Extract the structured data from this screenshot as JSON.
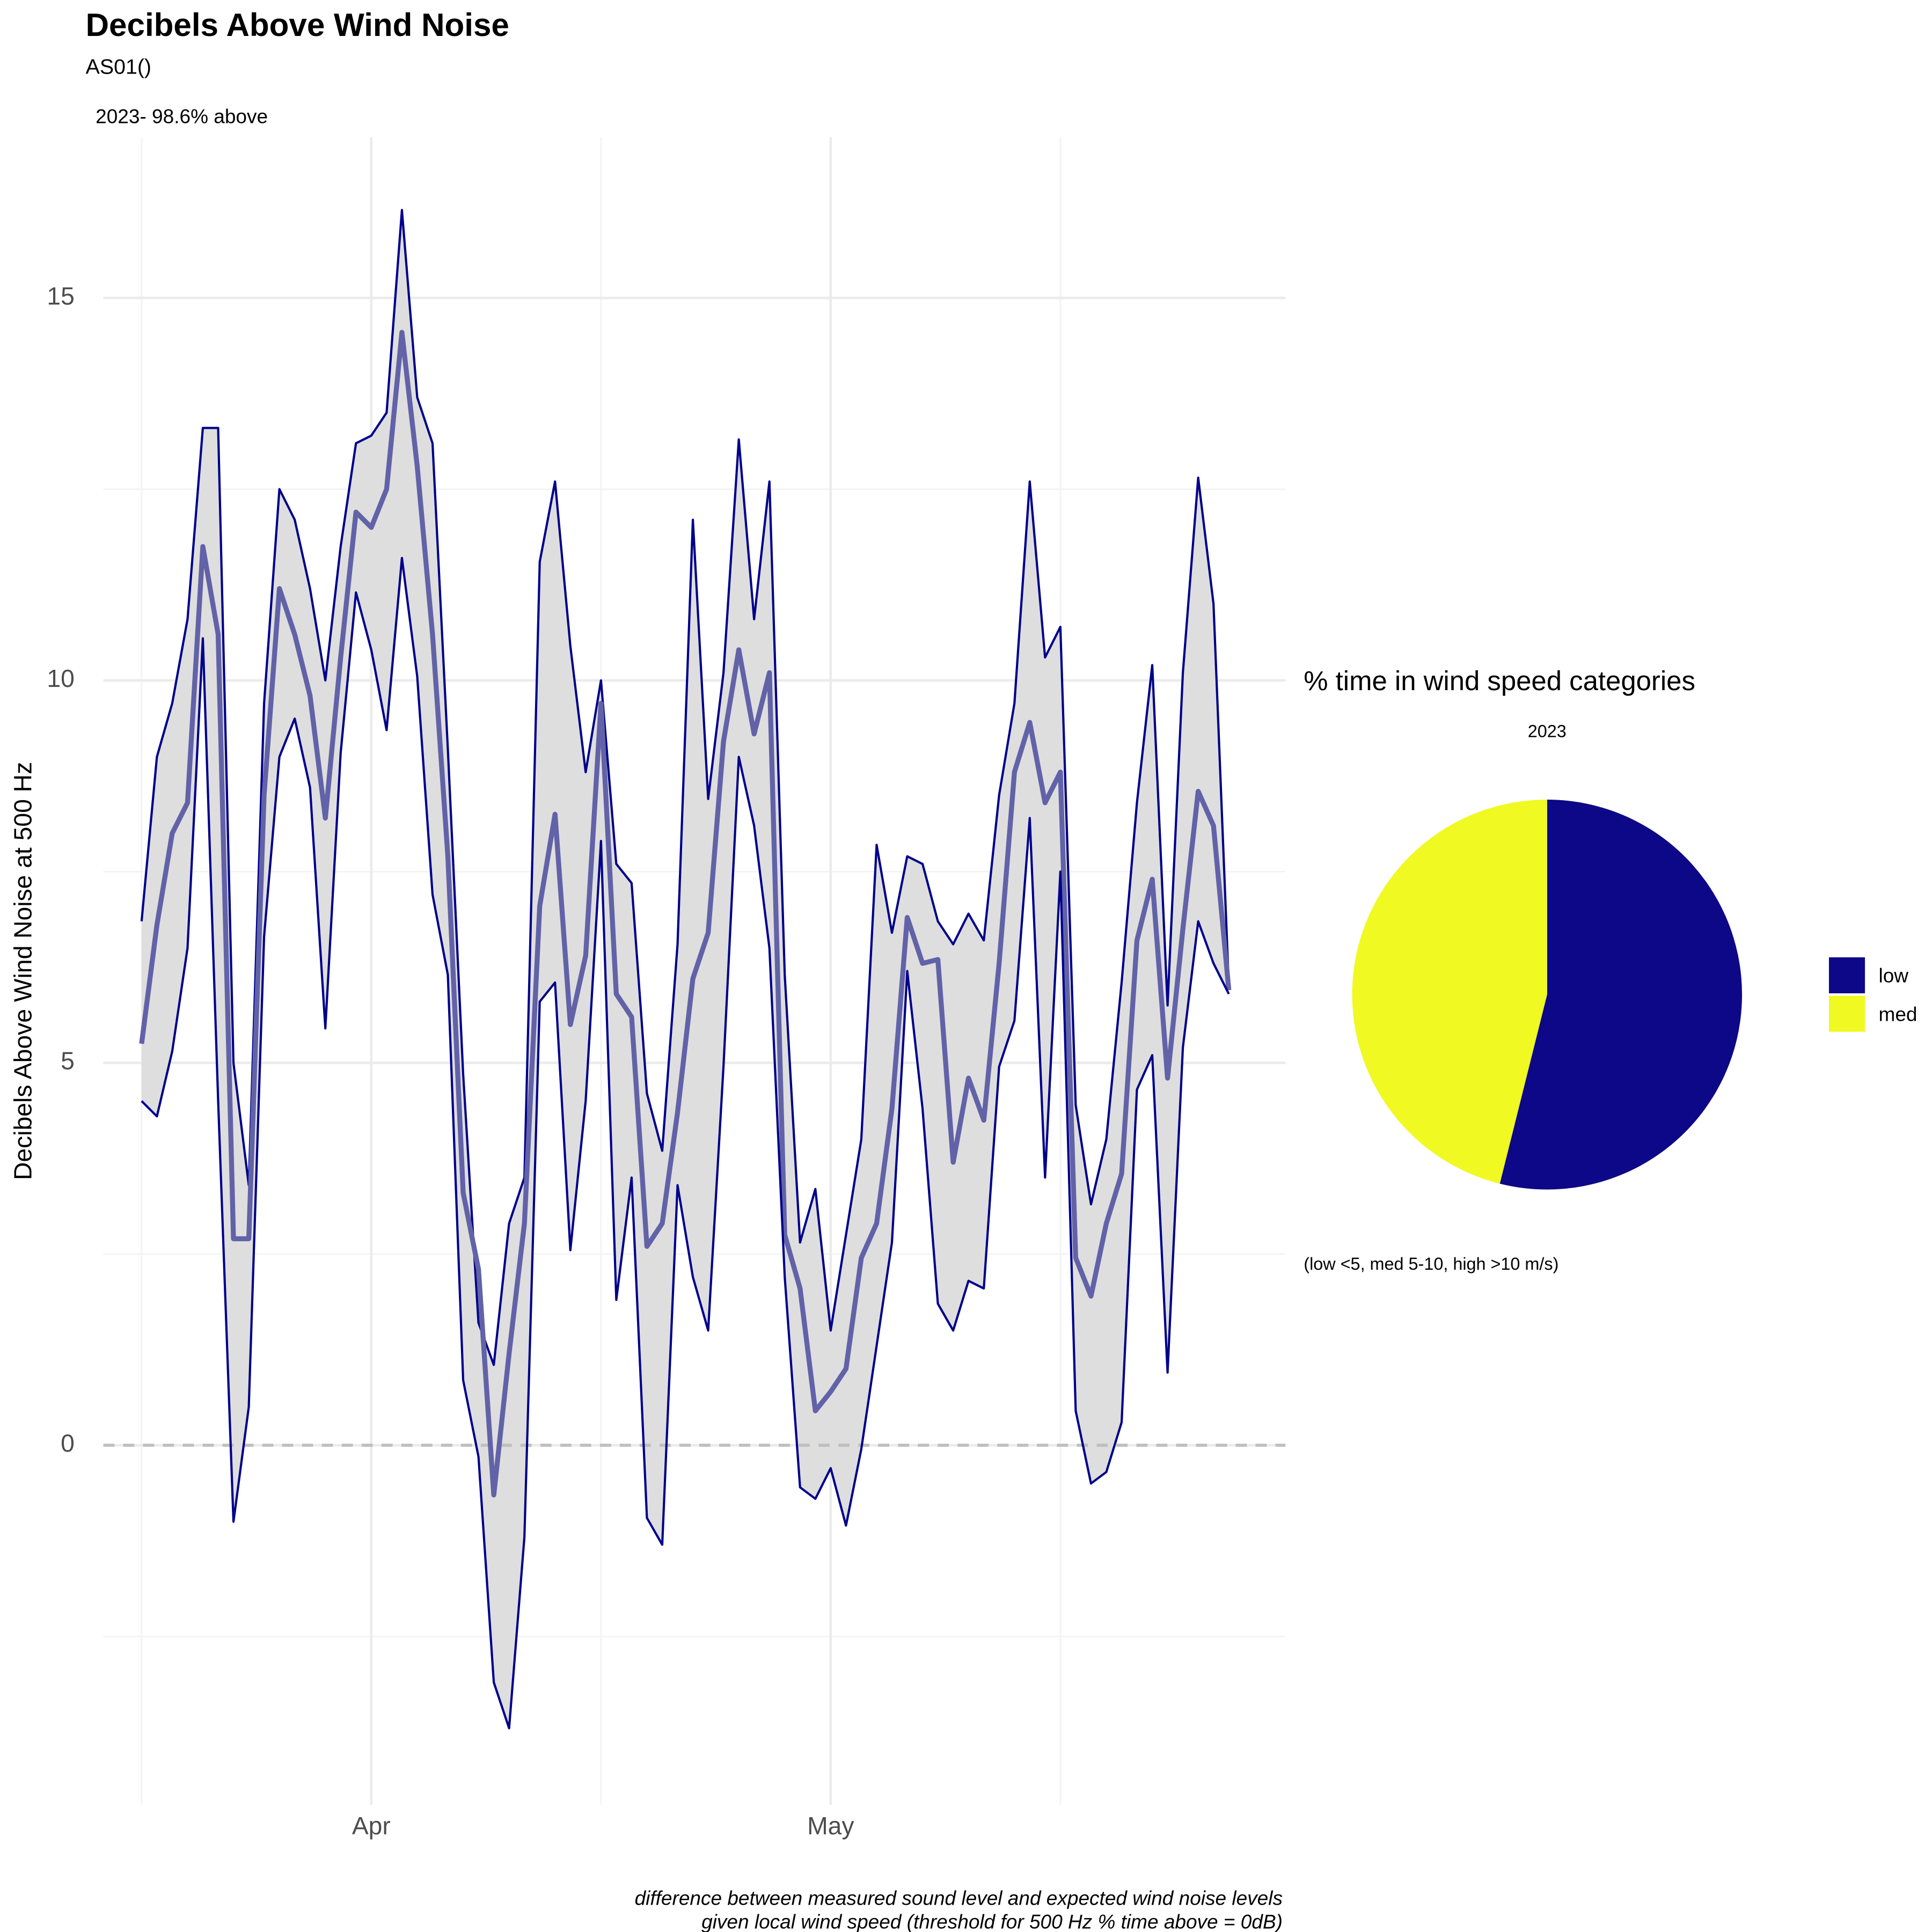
{
  "chart_data": [
    {
      "type": "line",
      "title": "Decibels Above Wind Noise",
      "subtitle": "AS01()",
      "annotation": "2023- 98.6% above",
      "y_label": "Decibels Above Wind Noise at 500 Hz",
      "caption": [
        "difference between measured sound level and expected wind noise levels",
        "given local wind speed (threshold for 500 Hz % time above = 0dB)"
      ],
      "x": [
        76,
        77,
        78,
        79,
        80,
        81,
        82,
        83,
        84,
        85,
        86,
        87,
        88,
        89,
        90,
        91,
        92,
        93,
        94,
        95,
        96,
        97,
        98,
        99,
        100,
        101,
        102,
        103,
        104,
        105,
        106,
        107,
        108,
        109,
        110,
        111,
        112,
        113,
        114,
        115,
        116,
        117,
        118,
        119,
        120,
        121,
        122,
        123,
        124,
        125,
        126,
        127,
        128,
        129,
        130,
        131,
        132,
        133,
        134,
        135,
        136,
        137,
        138,
        139,
        140,
        141,
        142,
        143,
        144,
        145,
        146,
        147
      ],
      "xlim": [
        73.5,
        150.7
      ],
      "xticks": [
        {
          "value": 91,
          "label": "Apr"
        },
        {
          "value": 121,
          "label": "May"
        }
      ],
      "ylim": [
        -4.7,
        17.1
      ],
      "yticks": [
        0,
        5,
        10,
        15
      ],
      "grid": true,
      "hline": 0,
      "ribbon_color": "#dedede",
      "series": [
        {
          "color": "#00008b",
          "values": [
            6.85,
            9.0,
            9.7,
            10.8,
            13.3,
            13.3,
            5.0,
            3.4,
            9.7,
            12.5,
            12.1,
            11.2,
            10.0,
            11.75,
            13.1,
            13.2,
            13.5,
            16.15,
            13.7,
            13.1,
            9.1,
            4.85,
            1.6,
            1.05,
            2.9,
            3.5,
            11.55,
            12.6,
            10.45,
            8.8,
            10.0,
            7.6,
            7.35,
            4.6,
            3.85,
            6.55,
            12.1,
            8.45,
            10.1,
            13.15,
            10.8,
            12.6,
            6.15,
            2.65,
            3.35,
            1.5,
            2.75,
            4.0,
            7.85,
            6.7,
            7.7,
            7.6,
            6.85,
            6.55,
            6.95,
            6.6,
            8.5,
            9.7,
            12.6,
            10.3,
            10.7,
            4.45,
            3.15,
            4.0,
            6.05,
            8.4,
            10.2,
            5.75,
            10.1,
            12.65,
            11.0,
            6.0
          ]
        },
        {
          "color": "#6262a8",
          "values": [
            5.25,
            6.8,
            8.0,
            8.4,
            11.75,
            10.6,
            2.7,
            2.7,
            8.5,
            11.2,
            10.6,
            9.8,
            8.2,
            10.3,
            12.2,
            12.0,
            12.5,
            14.55,
            12.8,
            10.6,
            7.7,
            3.3,
            2.3,
            -0.65,
            1.2,
            2.9,
            7.05,
            8.25,
            5.5,
            6.4,
            9.7,
            5.9,
            5.6,
            2.6,
            2.9,
            4.35,
            6.1,
            6.7,
            9.2,
            10.4,
            9.3,
            10.1,
            2.75,
            2.05,
            0.45,
            0.7,
            1.0,
            2.45,
            2.9,
            4.4,
            6.9,
            6.3,
            6.35,
            3.7,
            4.8,
            4.25,
            6.3,
            8.8,
            9.45,
            8.4,
            8.8,
            2.45,
            1.95,
            2.9,
            3.55,
            6.6,
            7.4,
            4.8,
            6.75,
            8.55,
            8.1,
            5.95
          ]
        },
        {
          "color": "#00008b",
          "values": [
            4.5,
            4.3,
            5.15,
            6.5,
            10.55,
            4.5,
            -1.0,
            0.5,
            6.65,
            9.0,
            9.5,
            8.6,
            5.45,
            9.05,
            11.15,
            10.4,
            9.35,
            11.6,
            10.05,
            7.2,
            6.15,
            0.85,
            -0.15,
            -3.1,
            -3.7,
            -1.2,
            5.8,
            6.05,
            2.55,
            4.5,
            7.9,
            1.9,
            3.5,
            -0.95,
            -1.3,
            3.4,
            2.2,
            1.5,
            4.95,
            9.0,
            8.1,
            6.5,
            2.2,
            -0.55,
            -0.7,
            -0.3,
            -1.05,
            -0.05,
            1.3,
            2.65,
            6.2,
            4.4,
            1.85,
            1.5,
            2.15,
            2.05,
            4.95,
            5.55,
            8.2,
            3.5,
            7.5,
            0.45,
            -0.5,
            -0.35,
            0.3,
            4.65,
            5.1,
            0.95,
            5.2,
            6.85,
            6.3,
            5.9
          ]
        }
      ]
    },
    {
      "type": "pie",
      "title": "% time in wind speed categories",
      "subtitle": "2023",
      "caption": "(low <5, med 5-10, high >10 m/s)",
      "categories": [
        "low",
        "med"
      ],
      "values": [
        53.9,
        46.1
      ],
      "colors": [
        "#0d0887",
        "#f0f921"
      ]
    }
  ]
}
